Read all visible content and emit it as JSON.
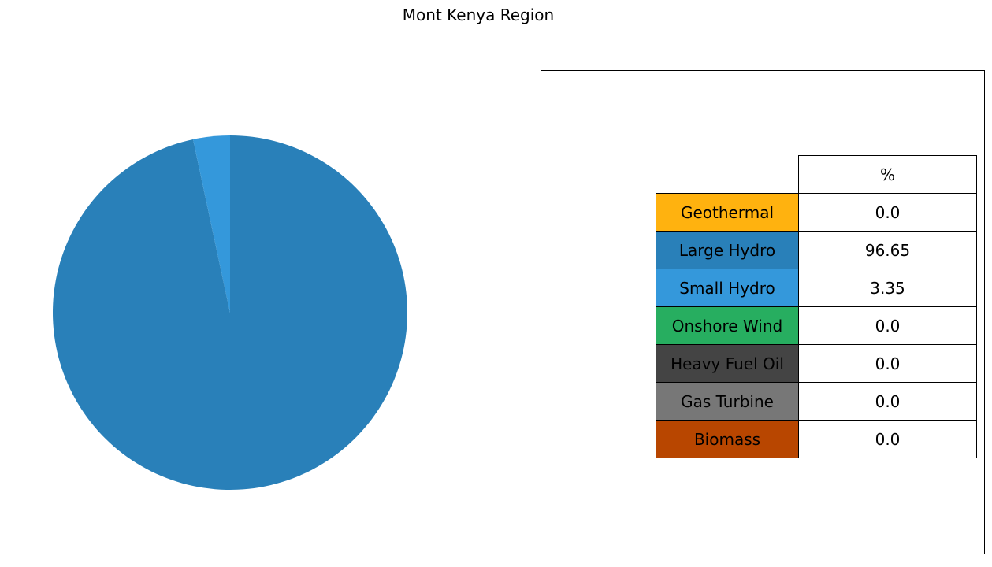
{
  "chart_data": [
    {
      "type": "pie",
      "title": "Mont Kenya Region",
      "start_angle_deg": 90,
      "direction": "clockwise",
      "slices": [
        {
          "name": "Geothermal",
          "value": 0.0,
          "color": "#FFB20F"
        },
        {
          "name": "Large Hydro",
          "value": 96.65,
          "color": "#2980B9"
        },
        {
          "name": "Small Hydro",
          "value": 3.35,
          "color": "#3498DB"
        },
        {
          "name": "Onshore Wind",
          "value": 0.0,
          "color": "#27AE60"
        },
        {
          "name": "Heavy Fuel Oil",
          "value": 0.0,
          "color": "#444444"
        },
        {
          "name": "Gas Turbine",
          "value": 0.0,
          "color": "#777777"
        },
        {
          "name": "Biomass",
          "value": 0.0,
          "color": "#B84600"
        }
      ]
    },
    {
      "type": "table",
      "columns": [
        "%"
      ],
      "rows": [
        {
          "label": "Geothermal",
          "value": "0.0",
          "color": "#FFB20F"
        },
        {
          "label": "Large Hydro",
          "value": "96.65",
          "color": "#2980B9"
        },
        {
          "label": "Small Hydro",
          "value": "3.35",
          "color": "#3498DB"
        },
        {
          "label": "Onshore Wind",
          "value": "0.0",
          "color": "#27AE60"
        },
        {
          "label": "Heavy Fuel Oil",
          "value": "0.0",
          "color": "#444444"
        },
        {
          "label": "Gas Turbine",
          "value": "0.0",
          "color": "#777777"
        },
        {
          "label": "Biomass",
          "value": "0.0",
          "color": "#B84600"
        }
      ]
    }
  ]
}
